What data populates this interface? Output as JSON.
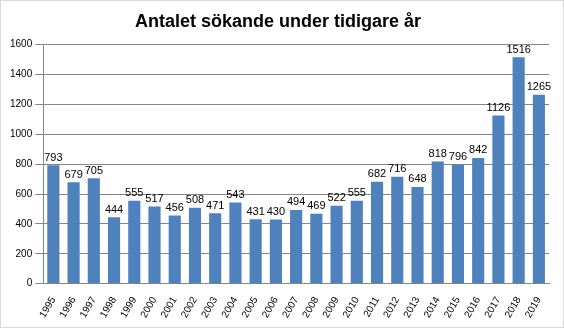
{
  "chart_data": {
    "type": "bar",
    "title": "Antalet sökande under tidigare år",
    "categories": [
      "1995",
      "1996",
      "1997",
      "1998",
      "1999",
      "2000",
      "2001",
      "2002",
      "2003",
      "2004",
      "2005",
      "2006",
      "2007",
      "2008",
      "2009",
      "2010",
      "2011",
      "2012",
      "2013",
      "2014",
      "2015",
      "2016",
      "2017",
      "2018",
      "2019"
    ],
    "values": [
      793,
      679,
      705,
      444,
      555,
      517,
      456,
      508,
      471,
      543,
      431,
      430,
      494,
      469,
      522,
      555,
      682,
      716,
      648,
      818,
      796,
      842,
      1126,
      1516,
      1265
    ],
    "color": "#4f81bd",
    "ylim": [
      0,
      1600
    ],
    "yticks": [
      0,
      200,
      400,
      600,
      800,
      1000,
      1200,
      1400,
      1600
    ],
    "grid": true,
    "data_labels": true
  }
}
